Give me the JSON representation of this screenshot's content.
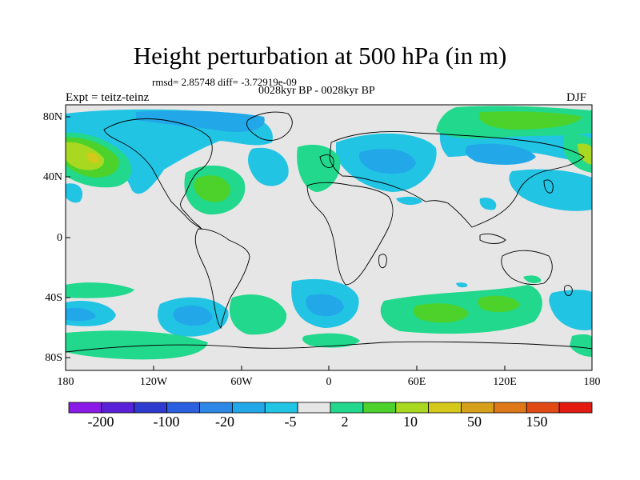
{
  "title": "Height perturbation at 500 hPa (in m)",
  "stats_line": "rmsd= 2.85748 diff= -3.72919e-09",
  "subtitle": "0028kyr BP - 0028kyr BP",
  "left_label": "Expt = teitz-teinz",
  "right_label": "DJF",
  "axes": {
    "y_ticks": [
      "80N",
      "40N",
      "0",
      "40S",
      "80S"
    ],
    "x_ticks": [
      "180",
      "120W",
      "60W",
      "0",
      "60E",
      "120E",
      "180"
    ]
  },
  "colorbar": {
    "colors": [
      "#8a1ae6",
      "#5a22d8",
      "#2e3ad0",
      "#2a5fe0",
      "#2c87e6",
      "#22a8e8",
      "#22c4e4",
      "#e6e6e6",
      "#22d88c",
      "#4cd22a",
      "#a8d820",
      "#d4c81a",
      "#d6a018",
      "#de7818",
      "#e24a14",
      "#e21a10"
    ],
    "labels": [
      "-200",
      "-100",
      "-20",
      "-5",
      "2",
      "10",
      "50",
      "150"
    ]
  },
  "field": {
    "background": "#e6e6e6",
    "light_blue": "#22c4e4",
    "mid_blue": "#22a8e8",
    "green": "#22d88c",
    "light_green": "#4cd22a",
    "yellow_green": "#a8d820",
    "coast": "#000000"
  }
}
